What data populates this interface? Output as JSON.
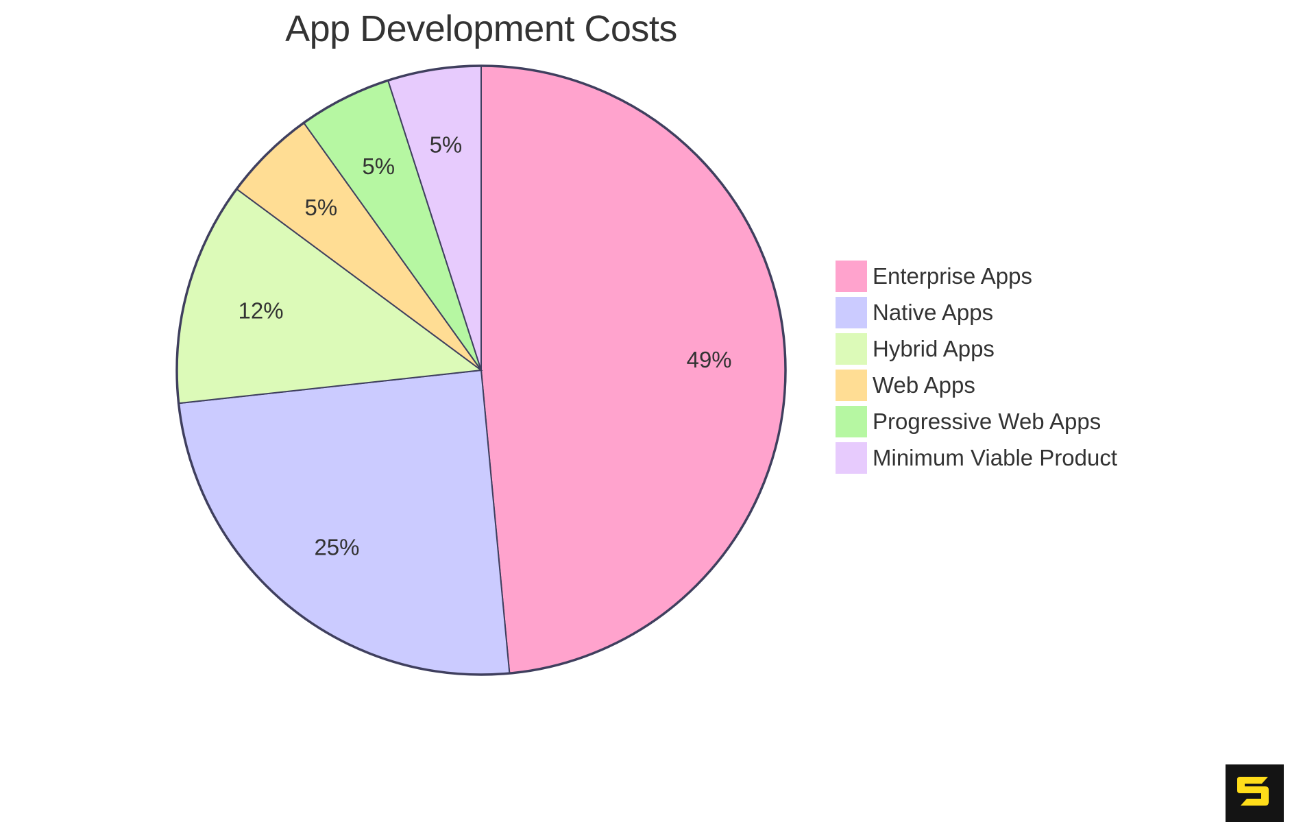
{
  "chart_data": {
    "type": "pie",
    "title": "App Development Costs",
    "categories": [
      "Enterprise Apps",
      "Native Apps",
      "Hybrid Apps",
      "Web Apps",
      "Progressive Web Apps",
      "Minimum Viable Product"
    ],
    "values": [
      49,
      25,
      12,
      5,
      5,
      5
    ],
    "labels": [
      "49%",
      "25%",
      "12%",
      "5%",
      "5%",
      "5%"
    ],
    "colors": [
      "#ffa3cd",
      "#cbcbff",
      "#dcfab8",
      "#ffdd94",
      "#b6f7a2",
      "#e7cbfd"
    ],
    "start_angle_deg": 0,
    "direction": "clockwise",
    "legend_position": "right",
    "stroke_color": "#3f3f5e"
  },
  "legend": {
    "items": [
      {
        "label": "Enterprise Apps",
        "color": "#ffa3cd"
      },
      {
        "label": "Native Apps",
        "color": "#cbcbff"
      },
      {
        "label": "Hybrid Apps",
        "color": "#dcfab8"
      },
      {
        "label": "Web Apps",
        "color": "#ffdd94"
      },
      {
        "label": "Progressive Web Apps",
        "color": "#b6f7a2"
      },
      {
        "label": "Minimum Viable Product",
        "color": "#e7cbfd"
      }
    ]
  },
  "logo": {
    "icon": "s-logo-icon",
    "background": "#141414",
    "foreground": "#ffdd1a"
  }
}
